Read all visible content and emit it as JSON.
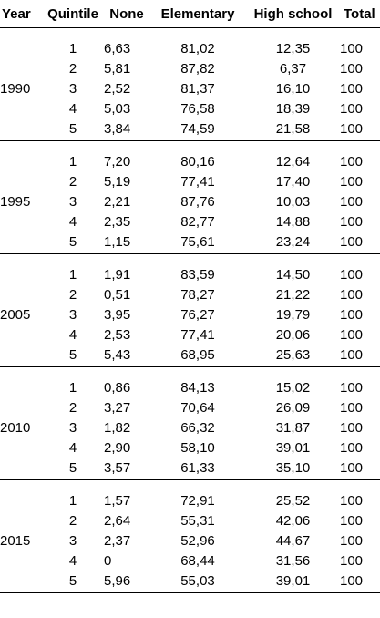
{
  "headers": {
    "year": "Year",
    "quintile": "Quintile",
    "none": "None",
    "elementary": "Elementary",
    "high_school": "High school",
    "total": "Total"
  },
  "groups": [
    {
      "year": "1990",
      "rows": [
        {
          "quintile": "1",
          "none": "6,63",
          "elementary": "81,02",
          "high_school": "12,35",
          "total": "100"
        },
        {
          "quintile": "2",
          "none": "5,81",
          "elementary": "87,82",
          "high_school": "6,37",
          "total": "100"
        },
        {
          "quintile": "3",
          "none": "2,52",
          "elementary": "81,37",
          "high_school": "16,10",
          "total": "100"
        },
        {
          "quintile": "4",
          "none": "5,03",
          "elementary": "76,58",
          "high_school": "18,39",
          "total": "100"
        },
        {
          "quintile": "5",
          "none": "3,84",
          "elementary": "74,59",
          "high_school": "21,58",
          "total": "100"
        }
      ]
    },
    {
      "year": "1995",
      "rows": [
        {
          "quintile": "1",
          "none": "7,20",
          "elementary": "80,16",
          "high_school": "12,64",
          "total": "100"
        },
        {
          "quintile": "2",
          "none": "5,19",
          "elementary": "77,41",
          "high_school": "17,40",
          "total": "100"
        },
        {
          "quintile": "3",
          "none": "2,21",
          "elementary": "87,76",
          "high_school": "10,03",
          "total": "100"
        },
        {
          "quintile": "4",
          "none": "2,35",
          "elementary": "82,77",
          "high_school": "14,88",
          "total": "100"
        },
        {
          "quintile": "5",
          "none": "1,15",
          "elementary": "75,61",
          "high_school": "23,24",
          "total": "100"
        }
      ]
    },
    {
      "year": "2005",
      "rows": [
        {
          "quintile": "1",
          "none": "1,91",
          "elementary": "83,59",
          "high_school": "14,50",
          "total": "100"
        },
        {
          "quintile": "2",
          "none": "0,51",
          "elementary": "78,27",
          "high_school": "21,22",
          "total": "100"
        },
        {
          "quintile": "3",
          "none": "3,95",
          "elementary": "76,27",
          "high_school": "19,79",
          "total": "100"
        },
        {
          "quintile": "4",
          "none": "2,53",
          "elementary": "77,41",
          "high_school": "20,06",
          "total": "100"
        },
        {
          "quintile": "5",
          "none": "5,43",
          "elementary": "68,95",
          "high_school": "25,63",
          "total": "100"
        }
      ]
    },
    {
      "year": "2010",
      "rows": [
        {
          "quintile": "1",
          "none": "0,86",
          "elementary": "84,13",
          "high_school": "15,02",
          "total": "100"
        },
        {
          "quintile": "2",
          "none": "3,27",
          "elementary": "70,64",
          "high_school": "26,09",
          "total": "100"
        },
        {
          "quintile": "3",
          "none": "1,82",
          "elementary": "66,32",
          "high_school": "31,87",
          "total": "100"
        },
        {
          "quintile": "4",
          "none": "2,90",
          "elementary": "58,10",
          "high_school": "39,01",
          "total": "100"
        },
        {
          "quintile": "5",
          "none": "3,57",
          "elementary": "61,33",
          "high_school": "35,10",
          "total": "100"
        }
      ]
    },
    {
      "year": "2015",
      "rows": [
        {
          "quintile": "1",
          "none": "1,57",
          "elementary": "72,91",
          "high_school": "25,52",
          "total": "100"
        },
        {
          "quintile": "2",
          "none": "2,64",
          "elementary": "55,31",
          "high_school": "42,06",
          "total": "100"
        },
        {
          "quintile": "3",
          "none": "2,37",
          "elementary": "52,96",
          "high_school": "44,67",
          "total": "100"
        },
        {
          "quintile": "4",
          "none": "0",
          "elementary": "68,44",
          "high_school": "31,56",
          "total": "100"
        },
        {
          "quintile": "5",
          "none": "5,96",
          "elementary": "55,03",
          "high_school": "39,01",
          "total": "100"
        }
      ]
    }
  ]
}
